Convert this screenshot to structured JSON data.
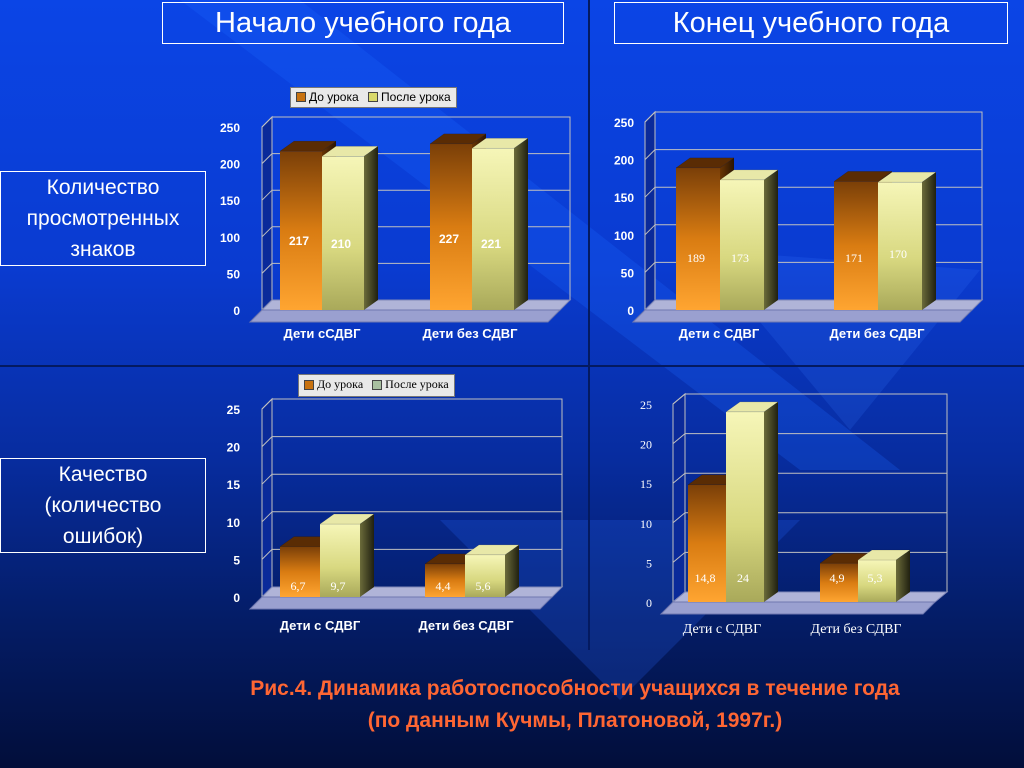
{
  "headers": {
    "start": "Начало учебного года",
    "end": "Конец учебного года"
  },
  "row_labels": {
    "count": [
      "Количество",
      "просмотренных",
      "знаков"
    ],
    "quality": [
      "Качество",
      "(количество",
      "ошибок)"
    ]
  },
  "caption": {
    "line1": "Рис.4. Динамика работоспособности учащихся в течение года",
    "line2": "(по данным Кучмы, Платоновой, 1997г.)"
  },
  "legend_before_color": "#c8720f",
  "legend_after_color": "#d8d86a",
  "chart_data": [
    {
      "type": "bar",
      "categories": [
        "Дети сСДВГ",
        "Дети без СДВГ"
      ],
      "series": [
        {
          "name": "До урока",
          "values": [
            217,
            227
          ]
        },
        {
          "name": "После урока",
          "values": [
            210,
            221
          ]
        }
      ],
      "value_labels": [
        [
          "217",
          "210"
        ],
        [
          "227",
          "221"
        ]
      ],
      "yticks": [
        "0",
        "50",
        "100",
        "150",
        "200",
        "250"
      ],
      "ylim": [
        0,
        250
      ],
      "grid": true,
      "legend": "top",
      "legend_labels": [
        "До урока",
        "После урока"
      ]
    },
    {
      "type": "bar",
      "categories": [
        "Дети с СДВГ",
        "Дети без СДВГ"
      ],
      "series": [
        {
          "values": [
            189,
            171
          ]
        },
        {
          "values": [
            173,
            170
          ]
        }
      ],
      "value_labels": [
        [
          "189",
          "173"
        ],
        [
          "171",
          "170"
        ]
      ],
      "yticks": [
        "0",
        "50",
        "100",
        "150",
        "200",
        "250"
      ],
      "ylim": [
        0,
        250
      ],
      "grid": true
    },
    {
      "type": "bar",
      "categories": [
        "Дети с СДВГ",
        "Дети без СДВГ"
      ],
      "series": [
        {
          "name": "До урока",
          "values": [
            6.7,
            4.4
          ]
        },
        {
          "name": "После урока",
          "values": [
            9.7,
            5.6
          ]
        }
      ],
      "value_labels": [
        [
          "6,7",
          "9,7"
        ],
        [
          "4,4",
          "5,6"
        ]
      ],
      "yticks": [
        "0",
        "5",
        "10",
        "15",
        "20",
        "25"
      ],
      "ylim": [
        0,
        25
      ],
      "grid": true,
      "legend": "top",
      "legend_labels": [
        "До урока",
        "После урока"
      ]
    },
    {
      "type": "bar",
      "categories": [
        "Дети с СДВГ",
        "Дети без СДВГ"
      ],
      "series": [
        {
          "values": [
            14.8,
            4.9
          ]
        },
        {
          "values": [
            24,
            5.3
          ]
        }
      ],
      "value_labels": [
        [
          "14,8",
          "24"
        ],
        [
          "4,9",
          "5,3"
        ]
      ],
      "yticks": [
        "0",
        "5",
        "10",
        "15",
        "20",
        "25"
      ],
      "ylim": [
        0,
        25
      ],
      "grid": true
    }
  ]
}
